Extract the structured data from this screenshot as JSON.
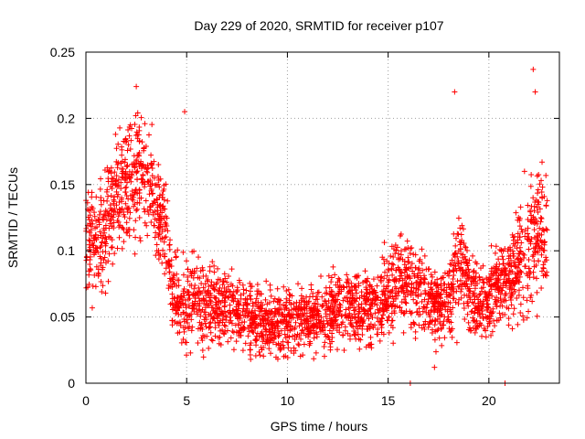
{
  "chart_data": {
    "type": "scatter",
    "title": "Day 229 of 2020, SRMTID for receiver p107",
    "xlabel": "GPS time / hours",
    "ylabel": "SRMTID / TECUs",
    "xlim": [
      0,
      23.5
    ],
    "ylim": [
      0,
      0.25
    ],
    "x_ticks": [
      0,
      5,
      10,
      15,
      20
    ],
    "x_tick_labels": [
      "0",
      "5",
      "10",
      "15",
      "20"
    ],
    "y_ticks": [
      0,
      0.05,
      0.1,
      0.15,
      0.2,
      0.25
    ],
    "y_tick_labels": [
      "0",
      "0.05",
      "0.1",
      "0.15",
      "0.2",
      "0.25"
    ],
    "grid": true,
    "marker": "+",
    "color": "#ff0000",
    "series": [
      {
        "name": "SRMTID",
        "x_range": [
          0,
          22.9
        ],
        "point_count": 3000,
        "envelope_hours": [
          0,
          0.5,
          1,
          1.5,
          2,
          2.5,
          3,
          3.5,
          4,
          4.3,
          4.7,
          5,
          5.5,
          6,
          7,
          8,
          9,
          10,
          11,
          12,
          13,
          14,
          15,
          15.5,
          16,
          16.5,
          17,
          17.5,
          18,
          18.3,
          18.7,
          19,
          19.5,
          20,
          20.5,
          21,
          21.5,
          22,
          22.5,
          22.9
        ],
        "mean_srmtid_tecu": [
          0.11,
          0.105,
          0.12,
          0.14,
          0.15,
          0.16,
          0.155,
          0.135,
          0.11,
          0.07,
          0.06,
          0.06,
          0.065,
          0.06,
          0.055,
          0.05,
          0.045,
          0.045,
          0.05,
          0.055,
          0.06,
          0.055,
          0.065,
          0.08,
          0.075,
          0.07,
          0.065,
          0.06,
          0.06,
          0.085,
          0.09,
          0.07,
          0.06,
          0.06,
          0.07,
          0.08,
          0.09,
          0.1,
          0.12,
          0.11
        ],
        "spread_srmtid_tecu": [
          0.03,
          0.035,
          0.035,
          0.035,
          0.035,
          0.035,
          0.03,
          0.03,
          0.03,
          0.025,
          0.025,
          0.025,
          0.025,
          0.025,
          0.02,
          0.02,
          0.02,
          0.02,
          0.02,
          0.022,
          0.022,
          0.022,
          0.025,
          0.025,
          0.025,
          0.022,
          0.022,
          0.022,
          0.025,
          0.03,
          0.03,
          0.025,
          0.022,
          0.022,
          0.025,
          0.025,
          0.03,
          0.035,
          0.04,
          0.035
        ],
        "notable_points": [
          {
            "x": 2.5,
            "y": 0.224
          },
          {
            "x": 4.9,
            "y": 0.205
          },
          {
            "x": 18.3,
            "y": 0.22
          },
          {
            "x": 22.2,
            "y": 0.237
          },
          {
            "x": 22.3,
            "y": 0.22
          },
          {
            "x": 16.1,
            "y": 0.0
          },
          {
            "x": 20.8,
            "y": 0.0
          },
          {
            "x": 17.3,
            "y": 0.012
          }
        ]
      }
    ]
  }
}
